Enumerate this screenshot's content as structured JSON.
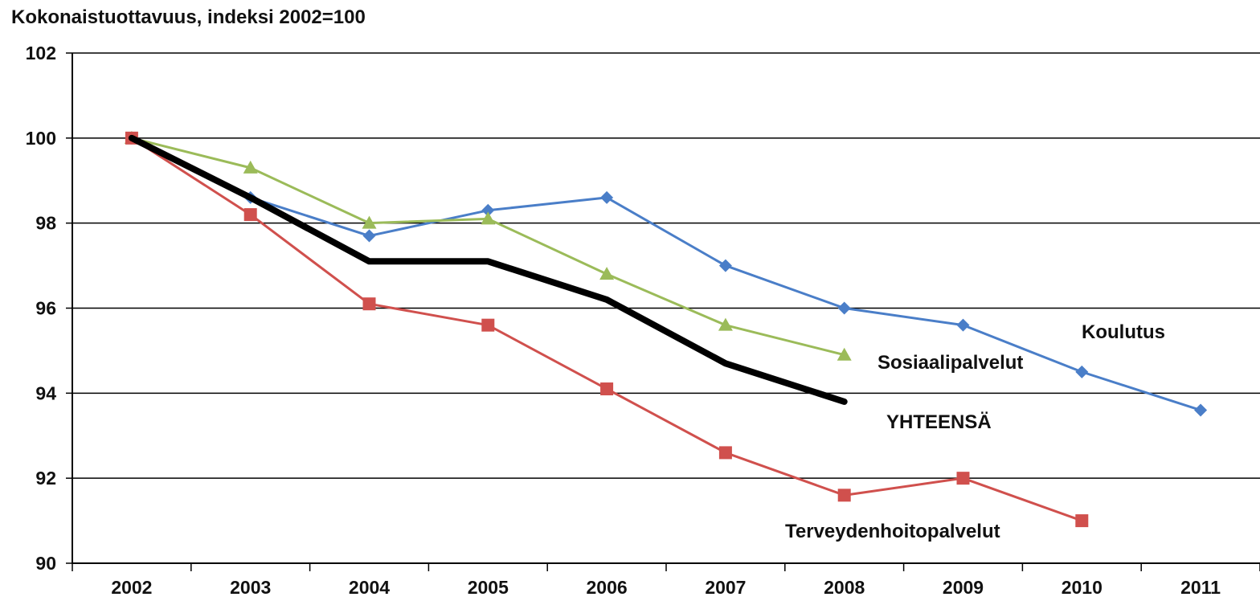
{
  "chart_data": {
    "type": "line",
    "title": "Kokonaistuottavuus, indeksi 2002=100",
    "xlabel": "",
    "ylabel": "",
    "x": [
      "2002",
      "2003",
      "2004",
      "2005",
      "2006",
      "2007",
      "2008",
      "2009",
      "2010",
      "2011"
    ],
    "ylim": [
      90,
      102
    ],
    "yticks": [
      90,
      92,
      94,
      96,
      98,
      100,
      102
    ],
    "grid": true,
    "legend": "inline labels",
    "series": [
      {
        "name": "Koulutus",
        "color": "#4A7EC8",
        "marker": "diamond",
        "values": [
          100,
          98.6,
          97.7,
          98.3,
          98.6,
          97.0,
          96.0,
          95.6,
          94.5,
          93.6
        ]
      },
      {
        "name": "Sosiaalipalvelut",
        "color": "#9BBB59",
        "marker": "triangle",
        "values": [
          100,
          99.3,
          98.0,
          98.1,
          96.8,
          95.6,
          94.9,
          null,
          null,
          null
        ]
      },
      {
        "name": "YHTEENSÄ",
        "color": "#000000",
        "marker": "none",
        "values": [
          100,
          98.6,
          97.1,
          97.1,
          96.2,
          94.7,
          93.8,
          null,
          null,
          null
        ]
      },
      {
        "name": "Terveydenhoitopalvelut",
        "color": "#D0504D",
        "marker": "square",
        "values": [
          100,
          98.2,
          96.1,
          95.6,
          94.1,
          92.6,
          91.6,
          92.0,
          91.0,
          null
        ]
      }
    ]
  }
}
